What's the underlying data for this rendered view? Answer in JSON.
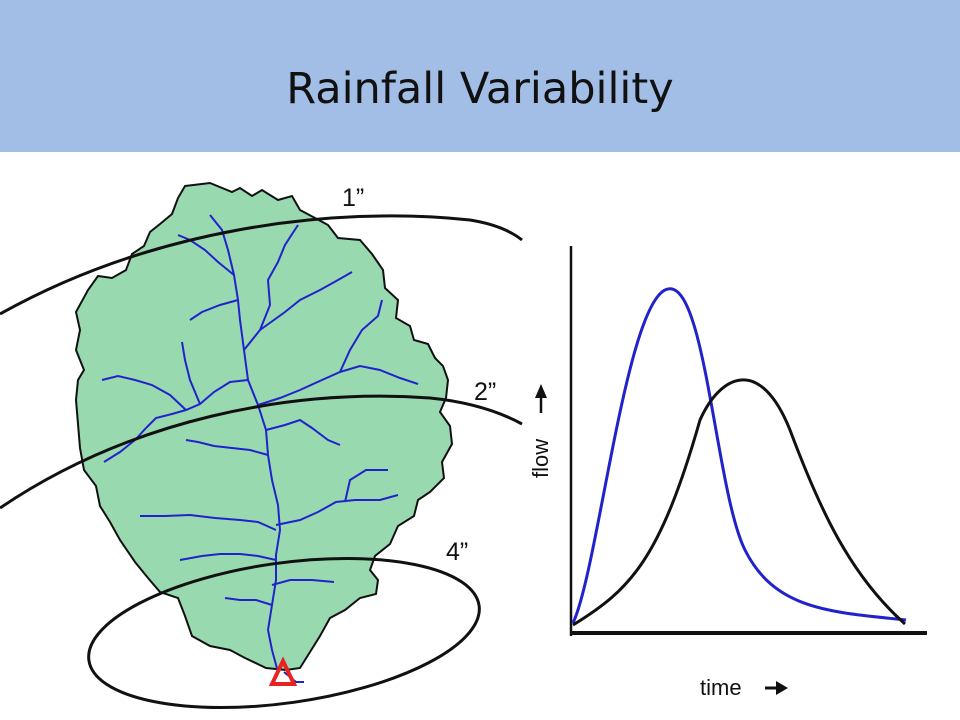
{
  "slide": {
    "title": "Rainfall Variability"
  },
  "isohyets": [
    {
      "label": "1”"
    },
    {
      "label": "2”"
    },
    {
      "label": "4”"
    }
  ],
  "hydrograph": {
    "x_label": "time",
    "y_label": "flow",
    "series": [
      {
        "color": "#2222cc"
      },
      {
        "color": "#000000"
      }
    ]
  },
  "colors": {
    "header": "#a2bde6",
    "watershed_fill": "#99d9b0",
    "streams": "#2222cc",
    "outlet": "#e82222"
  }
}
